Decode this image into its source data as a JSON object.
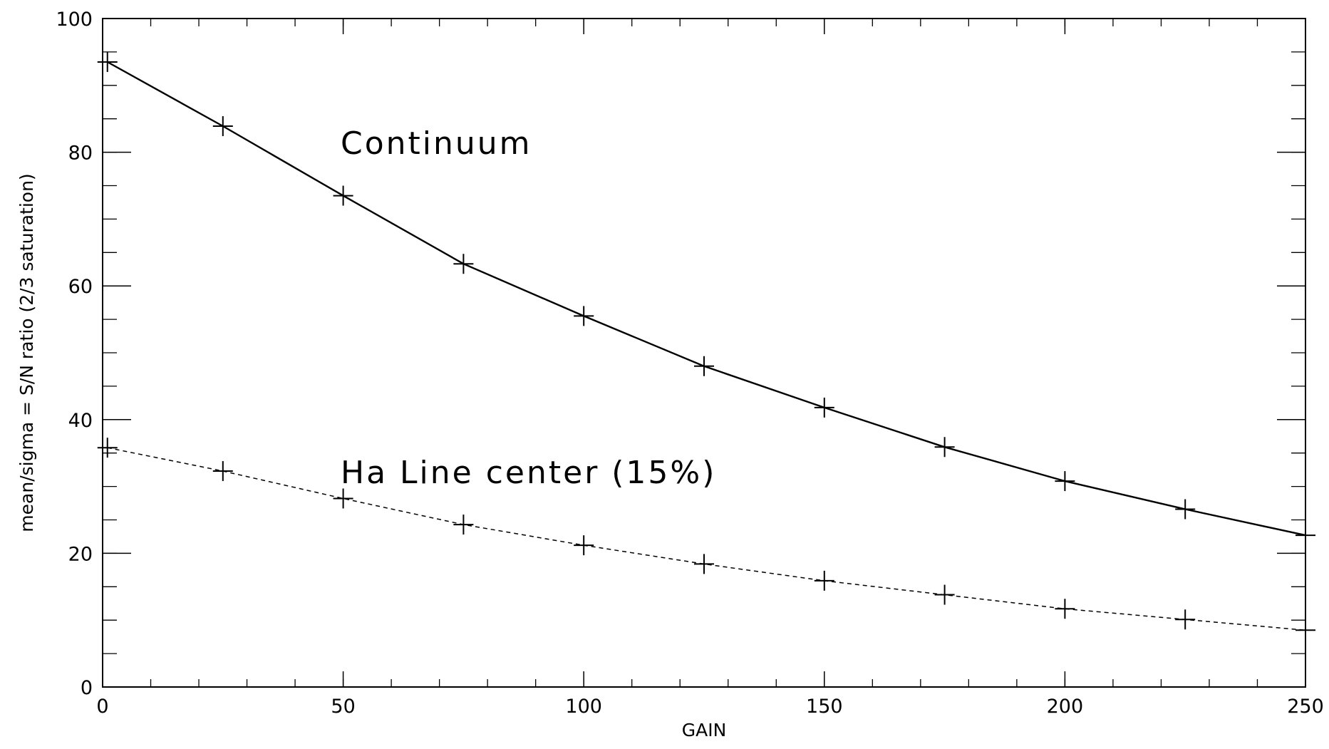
{
  "chart_data": {
    "type": "line",
    "title": "",
    "xlabel": "GAIN",
    "ylabel": "mean/sigma = S/N ratio (2/3 saturation)",
    "xlim": [
      0,
      250
    ],
    "ylim": [
      0,
      100
    ],
    "x_ticks": [
      0,
      50,
      100,
      150,
      200,
      250
    ],
    "y_ticks": [
      0,
      20,
      40,
      60,
      80,
      100
    ],
    "x_tick_labels": [
      "0",
      "50",
      "100",
      "150",
      "200",
      "250"
    ],
    "y_tick_labels": [
      "0",
      "20",
      "40",
      "60",
      "80",
      "100"
    ],
    "x_minor_step": 10,
    "y_minor_step": 5,
    "grid": false,
    "legend": "none",
    "x": [
      1,
      25,
      50,
      75,
      100,
      125,
      150,
      175,
      200,
      225,
      250
    ],
    "series": [
      {
        "name": "Continuum",
        "line_style": "solid",
        "marker": "plus",
        "color": "#000000",
        "values": [
          93.5,
          83.9,
          73.5,
          63.3,
          55.5,
          48.0,
          41.8,
          35.9,
          30.8,
          26.6,
          22.7
        ]
      },
      {
        "name": "Ha Line center (15%)",
        "line_style": "dashed",
        "marker": "plus",
        "color": "#000000",
        "values": [
          35.8,
          32.3,
          28.2,
          24.3,
          21.2,
          18.4,
          15.9,
          13.8,
          11.7,
          10.1,
          8.5
        ]
      }
    ]
  }
}
